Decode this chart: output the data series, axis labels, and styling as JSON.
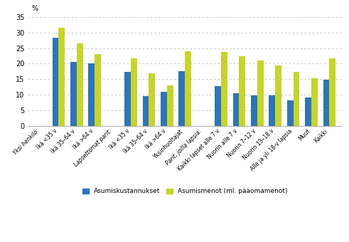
{
  "categories": [
    "Yksi henkilö:",
    "Ikä <35 v",
    "Ikä 35–64 v",
    "Ikä >64 v",
    "Lapsettomat parit:",
    "Ikä <35 v",
    "Ikä 35–64 v",
    "Ikä >64 v",
    "Yksinhuoltajat",
    "Parit, joilla lapsia:",
    "Kaikki lapset alle 7 v",
    "Nuorin alle 7 v",
    "Nuorin 7–12 v",
    "Nuorin 13–18 v",
    "Alle ja yli 18-v lapsia",
    "Muut",
    "Kaikki"
  ],
  "blue_values": [
    null,
    28.3,
    20.5,
    20.0,
    null,
    17.3,
    9.5,
    11.0,
    17.5,
    null,
    12.8,
    10.4,
    9.7,
    9.7,
    8.3,
    9.2,
    14.8
  ],
  "green_values": [
    null,
    31.5,
    26.6,
    23.0,
    null,
    21.7,
    16.8,
    13.0,
    23.9,
    null,
    23.8,
    22.4,
    21.1,
    19.3,
    17.3,
    15.3,
    21.6
  ],
  "blue_color": "#2E75B6",
  "green_color": "#C6D42C",
  "legend_blue": "Asumiskustannukset",
  "legend_green": "Asumismenot (ml. pääomamenot)",
  "ylabel": "%",
  "ylim": [
    0,
    35
  ],
  "yticks": [
    0,
    5,
    10,
    15,
    20,
    25,
    30,
    35
  ],
  "bar_width": 0.35,
  "figsize": [
    4.91,
    3.4
  ],
  "dpi": 100,
  "background_color": "#ffffff",
  "grid_color": "#b0b0b0"
}
